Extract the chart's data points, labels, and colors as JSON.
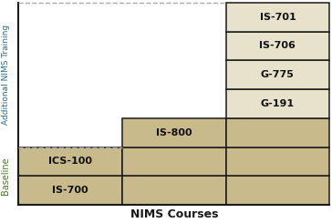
{
  "ylabel_baseline": "Baseline",
  "ylabel_additional": "Additional NIMS Training",
  "xlabel": "NIMS Courses",
  "tan_color": "#c9ba8c",
  "light_tan_color": "#e8e2cc",
  "border_color": "#1a1a1a",
  "dashed_color": "#aaaaaa",
  "baseline_label_color": "#4a7a20",
  "additional_label_color": "#2a6a90",
  "xlabel_color": "#1a1a1a",
  "figsize": [
    3.64,
    2.45
  ],
  "dpi": 100,
  "courses_col1": [
    "IS-700",
    "ICS-100"
  ],
  "courses_col2": [
    "IS-800"
  ],
  "courses_col3": [
    "G-191",
    "G-775",
    "IS-706",
    "IS-701"
  ],
  "cell_fontsize": 8,
  "ylabel_fontsize": 7,
  "xlabel_fontsize": 9
}
